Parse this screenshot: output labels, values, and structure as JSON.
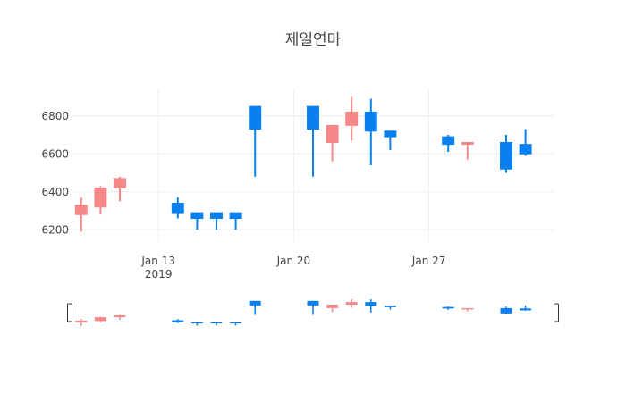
{
  "chart_data": {
    "type": "candlestick",
    "title": "제일연마",
    "x_ticks": [
      {
        "date": "2019-01-13",
        "label": "Jan 13",
        "sublabel": "2019"
      },
      {
        "date": "2019-01-20",
        "label": "Jan 20",
        "sublabel": ""
      },
      {
        "date": "2019-01-27",
        "label": "Jan 27",
        "sublabel": ""
      }
    ],
    "y_ticks": [
      6200,
      6400,
      6600,
      6800
    ],
    "ylim": [
      6140,
      6940
    ],
    "xlim": [
      "2019-01-09",
      "2019-02-02"
    ],
    "rangeslider": true,
    "colors": {
      "increasing": "#f6888a",
      "decreasing": "#0a80f0",
      "grid": "#eeeeee"
    },
    "candles": [
      {
        "date": "2019-01-09",
        "open": 6280,
        "high": 6370,
        "low": 6190,
        "close": 6330
      },
      {
        "date": "2019-01-10",
        "open": 6320,
        "high": 6430,
        "low": 6280,
        "close": 6420
      },
      {
        "date": "2019-01-11",
        "open": 6420,
        "high": 6480,
        "low": 6350,
        "close": 6470
      },
      {
        "date": "2019-01-14",
        "open": 6340,
        "high": 6370,
        "low": 6260,
        "close": 6290
      },
      {
        "date": "2019-01-15",
        "open": 6290,
        "high": 6290,
        "low": 6200,
        "close": 6260
      },
      {
        "date": "2019-01-16",
        "open": 6290,
        "high": 6290,
        "low": 6200,
        "close": 6260
      },
      {
        "date": "2019-01-17",
        "open": 6290,
        "high": 6290,
        "low": 6200,
        "close": 6260
      },
      {
        "date": "2019-01-18",
        "open": 6850,
        "high": 6850,
        "low": 6480,
        "close": 6730
      },
      {
        "date": "2019-01-21",
        "open": 6850,
        "high": 6850,
        "low": 6480,
        "close": 6730
      },
      {
        "date": "2019-01-22",
        "open": 6660,
        "high": 6750,
        "low": 6560,
        "close": 6750
      },
      {
        "date": "2019-01-23",
        "open": 6750,
        "high": 6900,
        "low": 6670,
        "close": 6820
      },
      {
        "date": "2019-01-24",
        "open": 6820,
        "high": 6890,
        "low": 6540,
        "close": 6720
      },
      {
        "date": "2019-01-25",
        "open": 6720,
        "high": 6720,
        "low": 6620,
        "close": 6690
      },
      {
        "date": "2019-01-28",
        "open": 6690,
        "high": 6700,
        "low": 6610,
        "close": 6650
      },
      {
        "date": "2019-01-29",
        "open": 6650,
        "high": 6660,
        "low": 6570,
        "close": 6660
      },
      {
        "date": "2019-01-31",
        "open": 6660,
        "high": 6700,
        "low": 6500,
        "close": 6520
      },
      {
        "date": "2019-02-01",
        "open": 6650,
        "high": 6730,
        "low": 6590,
        "close": 6600
      }
    ]
  }
}
